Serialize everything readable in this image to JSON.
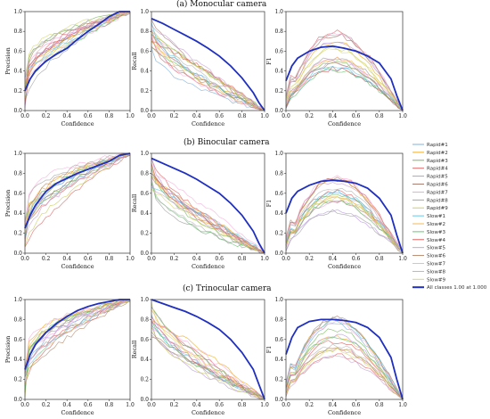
{
  "rows": [
    {
      "title": "(a) Monocular camera"
    },
    {
      "title": "(b) Binocular camera"
    },
    {
      "title": "(c) Trinocular camera"
    }
  ],
  "metric_axis_labels": [
    "Precision",
    "Recall",
    "F1"
  ],
  "xlabel": "Confidence",
  "ticks": [
    "0.0",
    "0.2",
    "0.4",
    "0.6",
    "0.8",
    "1.0"
  ],
  "legend": [
    {
      "name": "Rapid#1",
      "color": "#6fa8dc"
    },
    {
      "name": "Rapid#2",
      "color": "#f0a500"
    },
    {
      "name": "Rapid#3",
      "color": "#6ab04c"
    },
    {
      "name": "Rapid#4",
      "color": "#e05c5c"
    },
    {
      "name": "Rapid#5",
      "color": "#b48ee0"
    },
    {
      "name": "Rapid#6",
      "color": "#a07060"
    },
    {
      "name": "Rapid#7",
      "color": "#f29ad8"
    },
    {
      "name": "Rapid#8",
      "color": "#9a9a9a"
    },
    {
      "name": "Rapid#9",
      "color": "#c8c850"
    },
    {
      "name": "Slow#1",
      "color": "#4fc3e8"
    },
    {
      "name": "Slow#2",
      "color": "#f5b041"
    },
    {
      "name": "Slow#3",
      "color": "#58c060"
    },
    {
      "name": "Slow#4",
      "color": "#d9534f"
    },
    {
      "name": "Slow#5",
      "color": "#c39bd3"
    },
    {
      "name": "Slow#6",
      "color": "#b08060"
    },
    {
      "name": "Slow#7",
      "color": "#f7a8d8"
    },
    {
      "name": "Slow#8",
      "color": "#b0b0b0"
    },
    {
      "name": "Slow#9",
      "color": "#d4d46a"
    },
    {
      "name": "All  classes 1.00 at 1.000",
      "color": "#1f2fbf"
    }
  ],
  "chart_data": [
    {
      "type": "line",
      "row": 0,
      "ylabel": "Precision",
      "xlabel": "Confidence",
      "xlim": [
        0,
        1
      ],
      "ylim": [
        0,
        1
      ],
      "series": [
        {
          "name": "All  classes 1.00 at 1.000",
          "x": [
            0,
            0.05,
            0.1,
            0.2,
            0.3,
            0.4,
            0.5,
            0.6,
            0.7,
            0.8,
            0.9,
            1.0
          ],
          "y": [
            0.2,
            0.32,
            0.4,
            0.5,
            0.57,
            0.63,
            0.72,
            0.8,
            0.87,
            0.95,
            1.0,
            1.0
          ]
        }
      ]
    },
    {
      "type": "line",
      "row": 0,
      "ylabel": "Recall",
      "xlabel": "Confidence",
      "xlim": [
        0,
        1
      ],
      "ylim": [
        0,
        1
      ],
      "series": [
        {
          "name": "All  classes 1.00 at 1.000",
          "x": [
            0,
            0.1,
            0.2,
            0.3,
            0.4,
            0.5,
            0.6,
            0.7,
            0.8,
            0.9,
            0.95,
            1.0
          ],
          "y": [
            0.93,
            0.88,
            0.82,
            0.76,
            0.7,
            0.63,
            0.55,
            0.45,
            0.33,
            0.18,
            0.08,
            0.0
          ]
        }
      ]
    },
    {
      "type": "line",
      "row": 0,
      "ylabel": "F1",
      "xlabel": "Confidence",
      "xlim": [
        0,
        1
      ],
      "ylim": [
        0,
        1
      ],
      "series": [
        {
          "name": "All  classes 1.00 at 1.000",
          "x": [
            0,
            0.05,
            0.1,
            0.2,
            0.3,
            0.4,
            0.5,
            0.6,
            0.7,
            0.8,
            0.9,
            0.95,
            1.0
          ],
          "y": [
            0.3,
            0.45,
            0.53,
            0.6,
            0.64,
            0.65,
            0.63,
            0.6,
            0.55,
            0.48,
            0.32,
            0.15,
            0.0
          ]
        }
      ]
    },
    {
      "type": "line",
      "row": 1,
      "ylabel": "Precision",
      "xlabel": "Confidence",
      "xlim": [
        0,
        1
      ],
      "ylim": [
        0,
        1
      ],
      "series": [
        {
          "name": "All  classes 1.00 at 1.000",
          "x": [
            0,
            0.05,
            0.1,
            0.2,
            0.3,
            0.4,
            0.5,
            0.6,
            0.7,
            0.8,
            0.9,
            1.0
          ],
          "y": [
            0.25,
            0.38,
            0.48,
            0.62,
            0.7,
            0.75,
            0.8,
            0.84,
            0.88,
            0.92,
            0.98,
            1.0
          ]
        }
      ]
    },
    {
      "type": "line",
      "row": 1,
      "ylabel": "Recall",
      "xlabel": "Confidence",
      "xlim": [
        0,
        1
      ],
      "ylim": [
        0,
        1
      ],
      "series": [
        {
          "name": "All  classes 1.00 at 1.000",
          "x": [
            0,
            0.1,
            0.2,
            0.3,
            0.4,
            0.5,
            0.6,
            0.7,
            0.8,
            0.9,
            0.95,
            1.0
          ],
          "y": [
            0.95,
            0.9,
            0.85,
            0.8,
            0.74,
            0.67,
            0.6,
            0.5,
            0.38,
            0.22,
            0.1,
            0.0
          ]
        }
      ]
    },
    {
      "type": "line",
      "row": 1,
      "ylabel": "F1",
      "xlabel": "Confidence",
      "xlim": [
        0,
        1
      ],
      "ylim": [
        0,
        1
      ],
      "series": [
        {
          "name": "All  classes 1.00 at 1.000",
          "x": [
            0,
            0.05,
            0.1,
            0.2,
            0.3,
            0.4,
            0.5,
            0.6,
            0.7,
            0.8,
            0.9,
            0.95,
            1.0
          ],
          "y": [
            0.4,
            0.55,
            0.62,
            0.68,
            0.72,
            0.73,
            0.72,
            0.7,
            0.65,
            0.55,
            0.38,
            0.18,
            0.0
          ]
        }
      ]
    },
    {
      "type": "line",
      "row": 2,
      "ylabel": "Precision",
      "xlabel": "Confidence",
      "xlim": [
        0,
        1
      ],
      "ylim": [
        0,
        1
      ],
      "series": [
        {
          "name": "All  classes 1.00 at 1.000",
          "x": [
            0,
            0.05,
            0.1,
            0.2,
            0.3,
            0.4,
            0.5,
            0.6,
            0.7,
            0.8,
            0.9,
            1.0
          ],
          "y": [
            0.3,
            0.45,
            0.55,
            0.67,
            0.76,
            0.83,
            0.89,
            0.93,
            0.96,
            0.98,
            1.0,
            1.0
          ]
        }
      ]
    },
    {
      "type": "line",
      "row": 2,
      "ylabel": "Recall",
      "xlabel": "Confidence",
      "xlim": [
        0,
        1
      ],
      "ylim": [
        0,
        1
      ],
      "series": [
        {
          "name": "All  classes 1.00 at 1.000",
          "x": [
            0,
            0.1,
            0.2,
            0.3,
            0.4,
            0.5,
            0.6,
            0.7,
            0.8,
            0.9,
            0.95,
            1.0
          ],
          "y": [
            1.0,
            0.96,
            0.92,
            0.88,
            0.83,
            0.77,
            0.7,
            0.6,
            0.47,
            0.3,
            0.15,
            0.0
          ]
        }
      ]
    },
    {
      "type": "line",
      "row": 2,
      "ylabel": "F1",
      "xlabel": "Confidence",
      "xlim": [
        0,
        1
      ],
      "ylim": [
        0,
        1
      ],
      "series": [
        {
          "name": "All  classes 1.00 at 1.000",
          "x": [
            0,
            0.05,
            0.1,
            0.2,
            0.3,
            0.4,
            0.5,
            0.6,
            0.7,
            0.8,
            0.9,
            0.95,
            1.0
          ],
          "y": [
            0.45,
            0.62,
            0.72,
            0.78,
            0.8,
            0.8,
            0.79,
            0.77,
            0.72,
            0.62,
            0.42,
            0.2,
            0.0
          ]
        }
      ]
    }
  ]
}
